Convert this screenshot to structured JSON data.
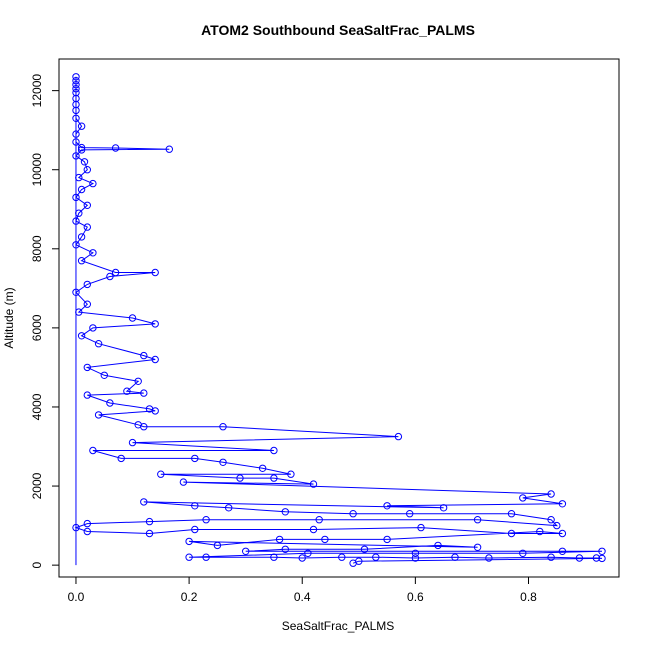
{
  "chart_data": {
    "type": "scatter",
    "title": "ATOM2 Southbound SeaSaltFrac_PALMS",
    "xlabel": "SeaSaltFrac_PALMS",
    "ylabel": "Altitude (m)",
    "xlim": [
      -0.03,
      0.96
    ],
    "ylim": [
      -300,
      12800
    ],
    "x_ticks": [
      0.0,
      0.2,
      0.4,
      0.6,
      0.8
    ],
    "x_tick_labels": [
      "0.0",
      "0.2",
      "0.4",
      "0.6",
      "0.8"
    ],
    "y_ticks": [
      0,
      2000,
      4000,
      6000,
      8000,
      10000,
      12000
    ],
    "y_tick_labels": [
      "0",
      "2000",
      "4000",
      "6000",
      "8000",
      "10000",
      "12000"
    ],
    "marker": "open-circle",
    "connected": true,
    "grid": false,
    "legend": "none",
    "series_color": "#0000ff",
    "points": [
      {
        "x": 0.0,
        "y": 12350
      },
      {
        "x": 0.0,
        "y": 12250
      },
      {
        "x": 0.0,
        "y": 12150
      },
      {
        "x": 0.0,
        "y": 12050
      },
      {
        "x": 0.0,
        "y": 11950
      },
      {
        "x": 0.0,
        "y": 11800
      },
      {
        "x": 0.0,
        "y": 11650
      },
      {
        "x": 0.0,
        "y": 11500
      },
      {
        "x": 0.0,
        "y": 11300
      },
      {
        "x": 0.01,
        "y": 11100
      },
      {
        "x": 0.0,
        "y": 10900
      },
      {
        "x": 0.0,
        "y": 10700
      },
      {
        "x": 0.01,
        "y": 10560
      },
      {
        "x": 0.07,
        "y": 10550
      },
      {
        "x": 0.165,
        "y": 10520
      },
      {
        "x": 0.01,
        "y": 10500
      },
      {
        "x": 0.0,
        "y": 10350
      },
      {
        "x": 0.015,
        "y": 10200
      },
      {
        "x": 0.02,
        "y": 10000
      },
      {
        "x": 0.005,
        "y": 9800
      },
      {
        "x": 0.03,
        "y": 9650
      },
      {
        "x": 0.01,
        "y": 9500
      },
      {
        "x": 0.0,
        "y": 9300
      },
      {
        "x": 0.02,
        "y": 9100
      },
      {
        "x": 0.005,
        "y": 8900
      },
      {
        "x": 0.0,
        "y": 8700
      },
      {
        "x": 0.02,
        "y": 8550
      },
      {
        "x": 0.01,
        "y": 8300
      },
      {
        "x": 0.0,
        "y": 8100
      },
      {
        "x": 0.03,
        "y": 7900
      },
      {
        "x": 0.01,
        "y": 7700
      },
      {
        "x": 0.07,
        "y": 7400
      },
      {
        "x": 0.14,
        "y": 7400
      },
      {
        "x": 0.06,
        "y": 7300
      },
      {
        "x": 0.02,
        "y": 7100
      },
      {
        "x": 0.0,
        "y": 6900
      },
      {
        "x": 0.02,
        "y": 6600
      },
      {
        "x": 0.005,
        "y": 6400
      },
      {
        "x": 0.1,
        "y": 6250
      },
      {
        "x": 0.14,
        "y": 6100
      },
      {
        "x": 0.03,
        "y": 6000
      },
      {
        "x": 0.01,
        "y": 5800
      },
      {
        "x": 0.04,
        "y": 5600
      },
      {
        "x": 0.12,
        "y": 5300
      },
      {
        "x": 0.14,
        "y": 5200
      },
      {
        "x": 0.02,
        "y": 5000
      },
      {
        "x": 0.05,
        "y": 4800
      },
      {
        "x": 0.11,
        "y": 4650
      },
      {
        "x": 0.09,
        "y": 4400
      },
      {
        "x": 0.12,
        "y": 4350
      },
      {
        "x": 0.02,
        "y": 4300
      },
      {
        "x": 0.06,
        "y": 4100
      },
      {
        "x": 0.13,
        "y": 3950
      },
      {
        "x": 0.14,
        "y": 3900
      },
      {
        "x": 0.04,
        "y": 3800
      },
      {
        "x": 0.11,
        "y": 3550
      },
      {
        "x": 0.12,
        "y": 3500
      },
      {
        "x": 0.26,
        "y": 3500
      },
      {
        "x": 0.57,
        "y": 3250
      },
      {
        "x": 0.1,
        "y": 3100
      },
      {
        "x": 0.35,
        "y": 2900
      },
      {
        "x": 0.03,
        "y": 2900
      },
      {
        "x": 0.08,
        "y": 2700
      },
      {
        "x": 0.21,
        "y": 2700
      },
      {
        "x": 0.26,
        "y": 2600
      },
      {
        "x": 0.33,
        "y": 2450
      },
      {
        "x": 0.38,
        "y": 2300
      },
      {
        "x": 0.15,
        "y": 2300
      },
      {
        "x": 0.29,
        "y": 2200
      },
      {
        "x": 0.35,
        "y": 2200
      },
      {
        "x": 0.42,
        "y": 2050
      },
      {
        "x": 0.19,
        "y": 2100
      },
      {
        "x": 0.84,
        "y": 1800
      },
      {
        "x": 0.79,
        "y": 1700
      },
      {
        "x": 0.86,
        "y": 1550
      },
      {
        "x": 0.55,
        "y": 1500
      },
      {
        "x": 0.65,
        "y": 1450
      },
      {
        "x": 0.12,
        "y": 1600
      },
      {
        "x": 0.21,
        "y": 1500
      },
      {
        "x": 0.27,
        "y": 1450
      },
      {
        "x": 0.37,
        "y": 1350
      },
      {
        "x": 0.49,
        "y": 1300
      },
      {
        "x": 0.59,
        "y": 1300
      },
      {
        "x": 0.77,
        "y": 1300
      },
      {
        "x": 0.84,
        "y": 1150
      },
      {
        "x": 0.85,
        "y": 1000
      },
      {
        "x": 0.71,
        "y": 1150
      },
      {
        "x": 0.43,
        "y": 1150
      },
      {
        "x": 0.23,
        "y": 1150
      },
      {
        "x": 0.13,
        "y": 1100
      },
      {
        "x": 0.02,
        "y": 1050
      },
      {
        "x": 0.0,
        "y": 950
      },
      {
        "x": 0.02,
        "y": 850
      },
      {
        "x": 0.13,
        "y": 800
      },
      {
        "x": 0.21,
        "y": 900
      },
      {
        "x": 0.42,
        "y": 900
      },
      {
        "x": 0.61,
        "y": 950
      },
      {
        "x": 0.77,
        "y": 800
      },
      {
        "x": 0.86,
        "y": 800
      },
      {
        "x": 0.82,
        "y": 850
      },
      {
        "x": 0.55,
        "y": 650
      },
      {
        "x": 0.44,
        "y": 650
      },
      {
        "x": 0.36,
        "y": 650
      },
      {
        "x": 0.25,
        "y": 500
      },
      {
        "x": 0.2,
        "y": 600
      },
      {
        "x": 0.71,
        "y": 450
      },
      {
        "x": 0.64,
        "y": 500
      },
      {
        "x": 0.51,
        "y": 400
      },
      {
        "x": 0.37,
        "y": 400
      },
      {
        "x": 0.3,
        "y": 350
      },
      {
        "x": 0.86,
        "y": 350
      },
      {
        "x": 0.93,
        "y": 350
      },
      {
        "x": 0.79,
        "y": 300
      },
      {
        "x": 0.6,
        "y": 300
      },
      {
        "x": 0.41,
        "y": 300
      },
      {
        "x": 0.2,
        "y": 200
      },
      {
        "x": 0.23,
        "y": 200
      },
      {
        "x": 0.35,
        "y": 200
      },
      {
        "x": 0.4,
        "y": 180
      },
      {
        "x": 0.47,
        "y": 200
      },
      {
        "x": 0.53,
        "y": 200
      },
      {
        "x": 0.6,
        "y": 180
      },
      {
        "x": 0.67,
        "y": 200
      },
      {
        "x": 0.73,
        "y": 180
      },
      {
        "x": 0.84,
        "y": 200
      },
      {
        "x": 0.89,
        "y": 180
      },
      {
        "x": 0.92,
        "y": 180
      },
      {
        "x": 0.93,
        "y": 170
      },
      {
        "x": 0.5,
        "y": 100
      },
      {
        "x": 0.49,
        "y": 50
      }
    ],
    "vertical_stacks": [
      {
        "x": 0.0,
        "y_from": 0,
        "y_to": 12300
      }
    ]
  }
}
